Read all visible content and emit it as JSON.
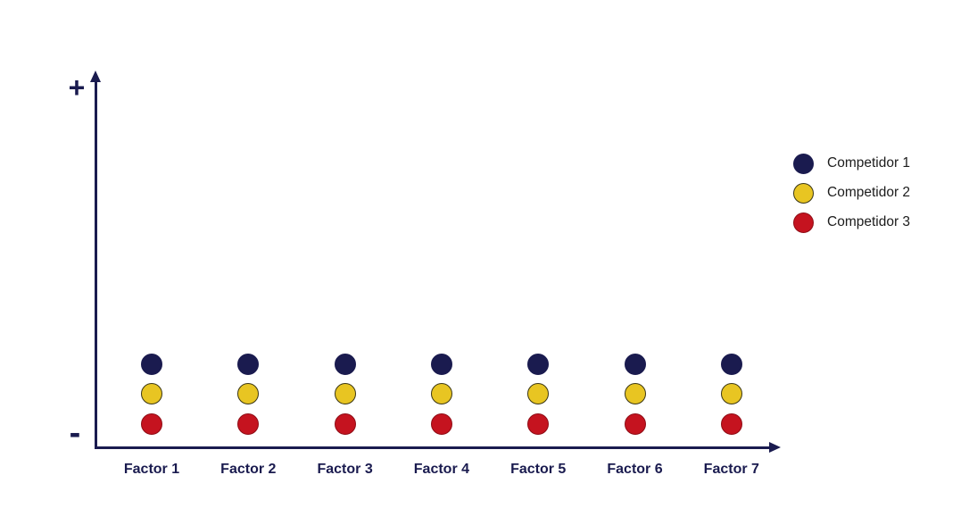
{
  "chart_data": {
    "type": "scatter",
    "categories": [
      "Factor 1",
      "Factor 2",
      "Factor 3",
      "Factor 4",
      "Factor 5",
      "Factor 6",
      "Factor 7"
    ],
    "xlabel": "",
    "ylabel": "",
    "y_axis": {
      "top_label": "+",
      "bottom_label": "-",
      "numeric_scale_shown": false,
      "range_normalized": [
        0,
        1
      ]
    },
    "grid": false,
    "legend_position": "right",
    "axis_color": "#1a1b4f",
    "series": [
      {
        "name": "Competidor 1",
        "color": "#1a1b4f",
        "outline": "#1a1b4f",
        "values": [
          0.23,
          0.23,
          0.23,
          0.23,
          0.23,
          0.23,
          0.23
        ]
      },
      {
        "name": "Competidor 2",
        "color": "#e8c522",
        "outline": "#3a3614",
        "values": [
          0.15,
          0.15,
          0.15,
          0.15,
          0.15,
          0.15,
          0.15
        ]
      },
      {
        "name": "Competidor 3",
        "color": "#c5131f",
        "outline": "#8f0d16",
        "values": [
          0.068,
          0.068,
          0.068,
          0.068,
          0.068,
          0.068,
          0.068
        ]
      }
    ]
  }
}
